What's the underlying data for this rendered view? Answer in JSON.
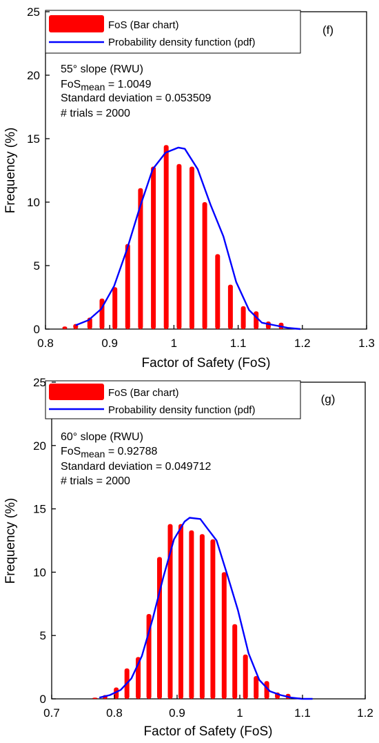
{
  "chart_data": [
    {
      "type": "bar",
      "panel_label": "(f)",
      "xlabel": "Factor of Safety (FoS)",
      "ylabel": "Frequency (%)",
      "xlim": [
        0.8,
        1.3
      ],
      "ylim": [
        0,
        25
      ],
      "x_ticks": [
        0.8,
        0.9,
        1.0,
        1.1,
        1.2,
        1.3
      ],
      "x_tick_labels": [
        "0.8",
        "0.9",
        "1",
        "1.1",
        "1.2",
        "1.3"
      ],
      "y_ticks": [
        0,
        5,
        10,
        15,
        20,
        25
      ],
      "y_tick_labels": [
        "0",
        "5",
        "10",
        "15",
        "20",
        "25"
      ],
      "legend": {
        "position": "top",
        "entries": [
          {
            "label": "FoS (Bar chart)",
            "kind": "bar",
            "color": "#ff0000"
          },
          {
            "label": "Probability density function (pdf)",
            "kind": "line",
            "color": "#0000ff"
          }
        ]
      },
      "annotation": {
        "title": "55° slope (RWU)",
        "mean_prefix": "FoS",
        "mean_subscript": "mean",
        "mean_value": " = 1.0049",
        "std_line": "Standard deviation = 0.053509",
        "trials_line": "# trials = 2000"
      },
      "bar_color": "#ff0000",
      "line_color": "#0000ff",
      "bars": {
        "x": [
          0.83,
          0.847,
          0.869,
          0.888,
          0.908,
          0.928,
          0.948,
          0.968,
          0.988,
          1.008,
          1.028,
          1.048,
          1.068,
          1.088,
          1.108,
          1.128,
          1.147,
          1.167,
          1.187
        ],
        "values": [
          0.2,
          0.4,
          0.9,
          2.4,
          3.3,
          6.7,
          11.1,
          12.8,
          14.5,
          13.0,
          12.8,
          10.0,
          5.9,
          3.5,
          1.8,
          1.4,
          0.6,
          0.5,
          0.1
        ]
      },
      "pdf": {
        "x": [
          0.847,
          0.867,
          0.887,
          0.907,
          0.927,
          0.947,
          0.967,
          0.987,
          1.007,
          1.017,
          1.037,
          1.057,
          1.077,
          1.097,
          1.117,
          1.137,
          1.157,
          1.177,
          1.197
        ],
        "y": [
          0.3,
          0.7,
          1.6,
          3.4,
          6.3,
          9.6,
          12.6,
          13.9,
          14.3,
          14.2,
          12.6,
          9.8,
          7.3,
          3.7,
          1.5,
          0.5,
          0.3,
          0.1,
          0.0
        ]
      }
    },
    {
      "type": "bar",
      "panel_label": "(g)",
      "xlabel": "Factor of Safety (FoS)",
      "ylabel": "Frequency (%)",
      "xlim": [
        0.7,
        1.2
      ],
      "ylim": [
        0,
        25
      ],
      "x_ticks": [
        0.7,
        0.8,
        0.9,
        1.0,
        1.1,
        1.2
      ],
      "x_tick_labels": [
        "0.7",
        "0.8",
        "0.9",
        "1",
        "1.1",
        "1.2"
      ],
      "y_ticks": [
        0,
        5,
        10,
        15,
        20,
        25
      ],
      "y_tick_labels": [
        "0",
        "5",
        "10",
        "15",
        "20",
        "25"
      ],
      "legend": {
        "position": "top",
        "entries": [
          {
            "label": "FoS (Bar chart)",
            "kind": "bar",
            "color": "#ff0000"
          },
          {
            "label": "Probability density function (pdf)",
            "kind": "line",
            "color": "#0000ff"
          }
        ]
      },
      "annotation": {
        "title": "60° slope (RWU)",
        "mean_prefix": "FoS",
        "mean_subscript": "mean",
        "mean_value": " = 0.92788",
        "std_line": "Standard deviation = 0.049712",
        "trials_line": "# trials = 2000"
      },
      "bar_color": "#ff0000",
      "line_color": "#0000ff",
      "bars": {
        "x": [
          0.769,
          0.785,
          0.803,
          0.82,
          0.838,
          0.855,
          0.872,
          0.889,
          0.906,
          0.923,
          0.94,
          0.957,
          0.975,
          0.992,
          1.009,
          1.026,
          1.043,
          1.06,
          1.077,
          1.095
        ],
        "values": [
          0.1,
          0.3,
          0.9,
          2.4,
          3.3,
          6.7,
          11.2,
          13.8,
          13.8,
          13.3,
          13.0,
          12.6,
          10.0,
          5.9,
          3.5,
          1.8,
          1.4,
          0.5,
          0.4,
          0.1
        ]
      },
      "pdf": {
        "x": [
          0.776,
          0.793,
          0.81,
          0.827,
          0.844,
          0.861,
          0.878,
          0.895,
          0.912,
          0.92,
          0.937,
          0.946,
          0.963,
          0.98,
          0.997,
          1.014,
          1.031,
          1.048,
          1.065,
          1.082,
          1.099,
          1.116
        ],
        "y": [
          0.1,
          0.3,
          0.7,
          1.6,
          3.4,
          6.3,
          9.6,
          12.6,
          14.0,
          14.3,
          14.2,
          13.6,
          12.5,
          9.8,
          7.0,
          3.6,
          1.5,
          0.6,
          0.3,
          0.1,
          0.0,
          0.0
        ]
      }
    }
  ]
}
